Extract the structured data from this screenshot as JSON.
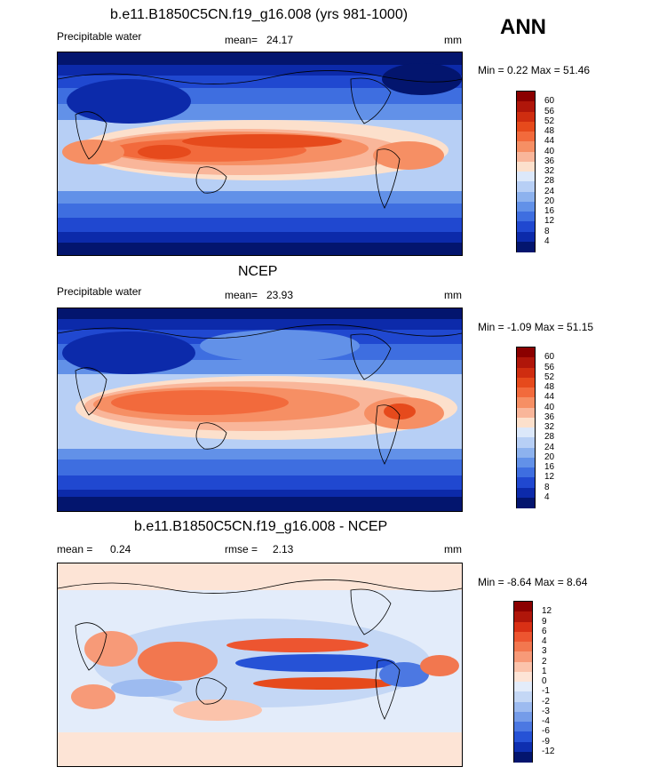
{
  "season": "ANN",
  "panels": [
    {
      "title": "b.e11.B1850C5CN.f19_g16.008 (yrs 981-1000)",
      "variable": "Precipitable water",
      "stat_label": "mean=",
      "stat_value": "24.17",
      "units": "mm",
      "minmax": "Min =   0.22 Max =   51.46",
      "colorbar": {
        "levels": [
          "60",
          "56",
          "52",
          "48",
          "44",
          "40",
          "36",
          "32",
          "28",
          "24",
          "20",
          "16",
          "12",
          "8",
          "4"
        ],
        "colors": [
          "#8b0000",
          "#b0160a",
          "#cf2d10",
          "#e64a1c",
          "#f26a3c",
          "#f68f64",
          "#f9b69a",
          "#fce0cc",
          "#dce8fa",
          "#b7cff5",
          "#8db2ee",
          "#6291e8",
          "#3e6ee0",
          "#2048d0",
          "#0c2aaa",
          "#03156e"
        ]
      }
    },
    {
      "title": "NCEP",
      "variable": "Precipitable water",
      "stat_label": "mean=",
      "stat_value": "23.93",
      "units": "mm",
      "minmax": "Min =  -1.09 Max =   51.15",
      "colorbar": {
        "levels": [
          "60",
          "56",
          "52",
          "48",
          "44",
          "40",
          "36",
          "32",
          "28",
          "24",
          "20",
          "16",
          "12",
          "8",
          "4"
        ],
        "colors": [
          "#8b0000",
          "#b0160a",
          "#cf2d10",
          "#e64a1c",
          "#f26a3c",
          "#f68f64",
          "#f9b69a",
          "#fce0cc",
          "#dce8fa",
          "#b7cff5",
          "#8db2ee",
          "#6291e8",
          "#3e6ee0",
          "#2048d0",
          "#0c2aaa",
          "#03156e"
        ]
      }
    },
    {
      "title": "b.e11.B1850C5CN.f19_g16.008 - NCEP",
      "stat_label": "mean =",
      "stat_value": "0.24",
      "stat2_label": "rmse =",
      "stat2_value": "2.13",
      "units": "mm",
      "minmax": "Min =  -8.64 Max =    8.64",
      "colorbar": {
        "levels": [
          "12",
          "9",
          "6",
          "4",
          "3",
          "2",
          "1",
          "0",
          "-1",
          "-2",
          "-3",
          "-4",
          "-6",
          "-9",
          "-12"
        ],
        "colors": [
          "#8b0000",
          "#b0160a",
          "#d93015",
          "#ed5530",
          "#f2774f",
          "#f79a78",
          "#fbc3ab",
          "#fde4d6",
          "#e3ecfa",
          "#c4d7f5",
          "#9dbbf0",
          "#759ce9",
          "#4c78e2",
          "#2652d6",
          "#0e2fb0",
          "#03156e"
        ]
      }
    }
  ]
}
